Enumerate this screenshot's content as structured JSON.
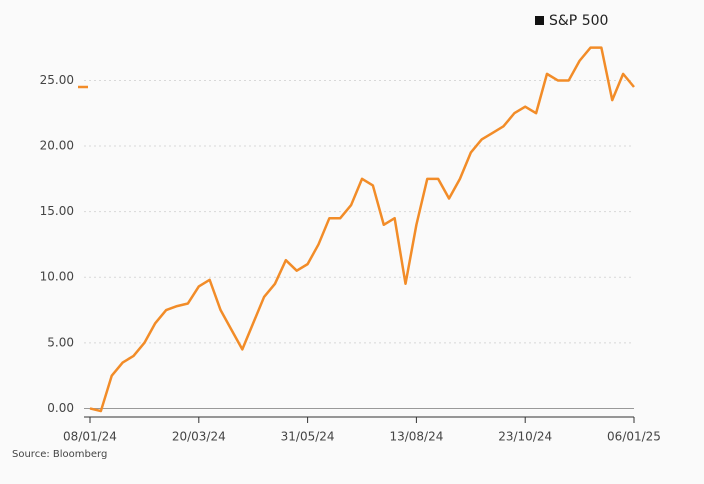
{
  "chart_data": {
    "type": "line",
    "categories": [
      "08/01/24",
      null,
      null,
      null,
      null,
      null,
      null,
      null,
      null,
      null,
      "20/03/24",
      null,
      null,
      null,
      null,
      null,
      null,
      null,
      null,
      null,
      "31/05/24",
      null,
      null,
      null,
      null,
      null,
      null,
      null,
      null,
      null,
      "13/08/24",
      null,
      null,
      null,
      null,
      null,
      null,
      null,
      null,
      null,
      "23/10/24",
      null,
      null,
      null,
      null,
      null,
      null,
      null,
      null,
      null,
      "06/01/25"
    ],
    "series": [
      {
        "name": "S&P 500",
        "color": "#f28c28",
        "values": [
          0,
          -0.2,
          2.5,
          3.5,
          4,
          5,
          6.5,
          7.5,
          7.8,
          8,
          9.3,
          9.8,
          7.5,
          6,
          4.5,
          6.5,
          8.5,
          9.5,
          11.3,
          10.5,
          11,
          12.5,
          14.5,
          14.5,
          15.5,
          17.5,
          17,
          14,
          14.5,
          9.5,
          14,
          17.5,
          17.5,
          16,
          17.5,
          19.5,
          20.5,
          21,
          21.5,
          22.5,
          23,
          22.5,
          25.5,
          25,
          25,
          26.5,
          27.5,
          27.5,
          23.5,
          25.5,
          24.5
        ]
      }
    ],
    "ylim": [
      -0.5,
      28
    ],
    "yticks": [
      {
        "value": 0,
        "label": "0.00"
      },
      {
        "value": 5,
        "label": "5.00"
      },
      {
        "value": 10,
        "label": "10.00"
      },
      {
        "value": 15,
        "label": "15.00"
      },
      {
        "value": 20,
        "label": "20.00"
      },
      {
        "value": 25,
        "label": "25.00"
      }
    ],
    "grid": true,
    "source": "Source: Bloomberg"
  }
}
